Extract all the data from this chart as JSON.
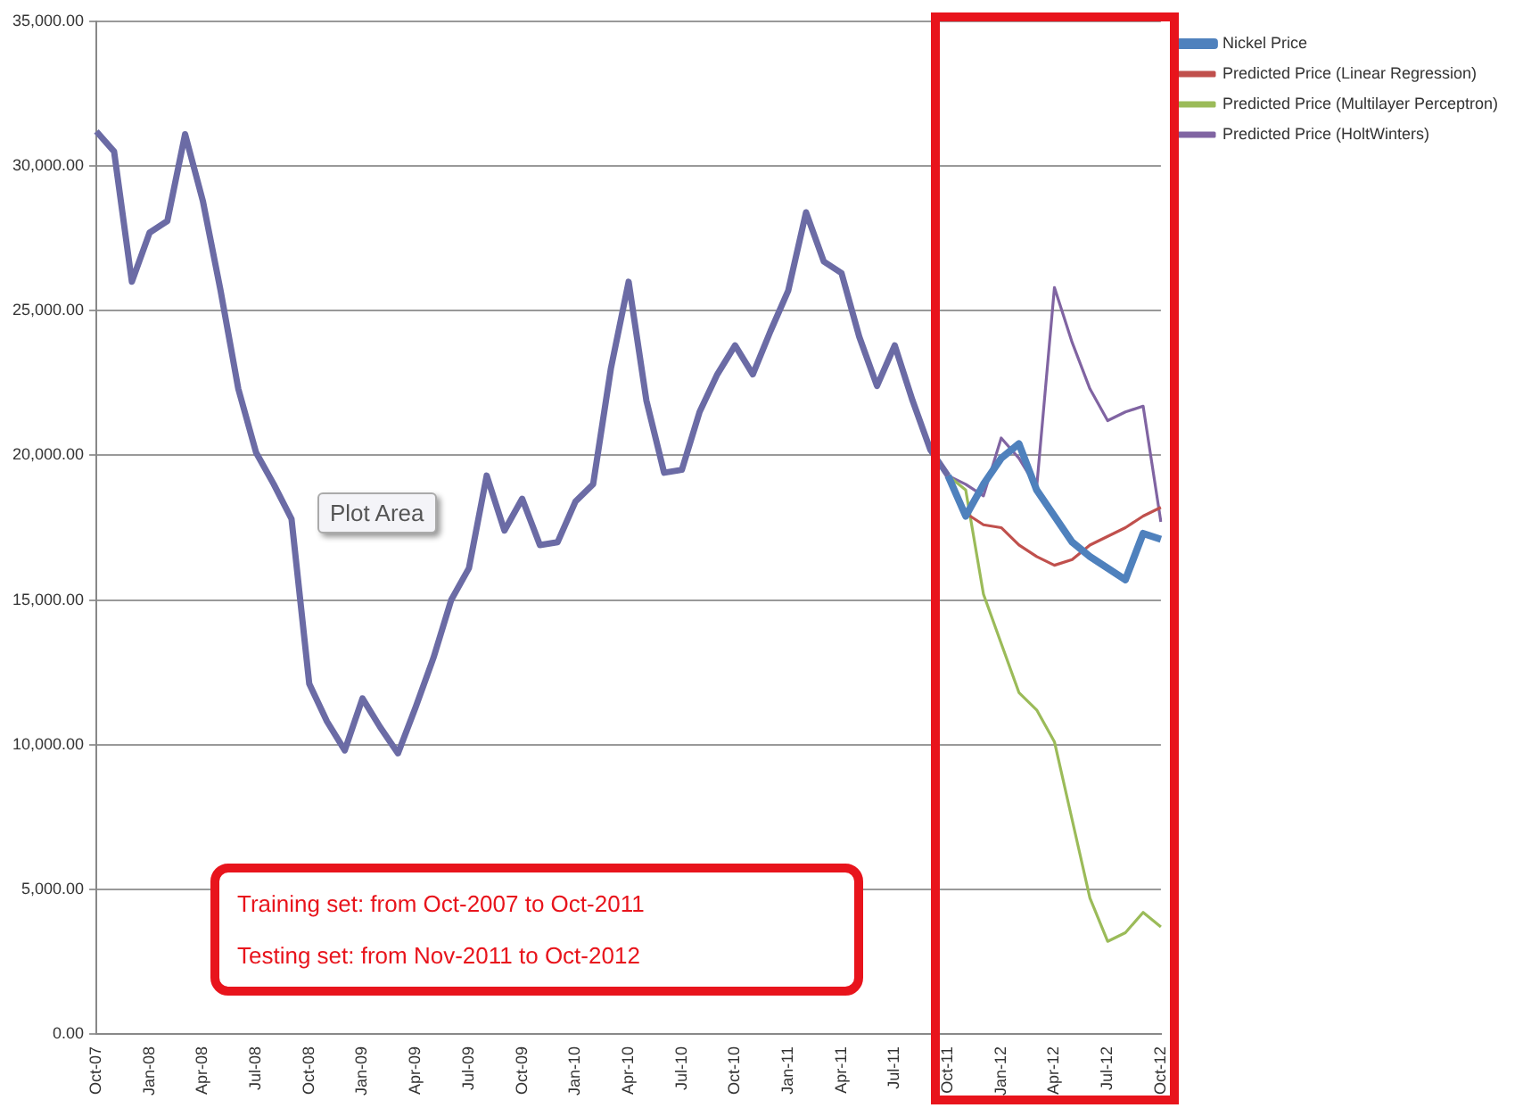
{
  "chart_data": {
    "type": "line",
    "categories": [
      "Oct-07",
      null,
      null,
      "Jan-08",
      null,
      null,
      "Apr-08",
      null,
      null,
      "Jul-08",
      null,
      null,
      "Oct-08",
      null,
      null,
      "Jan-09",
      null,
      null,
      "Apr-09",
      null,
      null,
      "Jul-09",
      null,
      null,
      "Oct-09",
      null,
      null,
      "Jan-10",
      null,
      null,
      "Apr-10",
      null,
      null,
      "Jul-10",
      null,
      null,
      "Oct-10",
      null,
      null,
      "Jan-11",
      null,
      null,
      "Apr-11",
      null,
      null,
      "Jul-11",
      null,
      null,
      "Oct-11",
      null,
      null,
      "Jan-12",
      null,
      null,
      "Apr-12",
      null,
      null,
      "Jul-12",
      null,
      null,
      "Oct-12"
    ],
    "series": [
      {
        "color": "#6b6ba5",
        "values": [
          31200,
          30500,
          26000,
          27700,
          28100,
          31100,
          28800,
          25700,
          22300,
          20100,
          19000,
          17800,
          12100,
          10800,
          9800,
          11600,
          10600,
          9700,
          11300,
          13000,
          15000,
          16100,
          19300,
          17400,
          18500,
          16900,
          17000,
          18400,
          19000,
          23000,
          26000,
          21900,
          19400,
          19500,
          21500,
          22800,
          23800,
          22800,
          24300,
          25700,
          28400,
          26700,
          26300,
          24100,
          22400,
          23800,
          21900,
          20200,
          19300,
          null,
          null,
          null,
          null,
          null,
          null,
          null,
          null,
          null,
          null,
          null,
          null
        ]
      },
      {
        "name": "Nickel Price",
        "color": "#4f81bd",
        "values": [
          null,
          null,
          null,
          null,
          null,
          null,
          null,
          null,
          null,
          null,
          null,
          null,
          null,
          null,
          null,
          null,
          null,
          null,
          null,
          null,
          null,
          null,
          null,
          null,
          null,
          null,
          null,
          null,
          null,
          null,
          null,
          null,
          null,
          null,
          null,
          null,
          null,
          null,
          null,
          null,
          null,
          null,
          null,
          null,
          null,
          null,
          null,
          null,
          19300,
          17900,
          19000,
          19900,
          20400,
          18800,
          17900,
          17000,
          16500,
          16100,
          15700,
          17300,
          17100
        ]
      },
      {
        "name": "Predicted Price (Linear Regression)",
        "color": "#c0504d",
        "values": [
          null,
          null,
          null,
          null,
          null,
          null,
          null,
          null,
          null,
          null,
          null,
          null,
          null,
          null,
          null,
          null,
          null,
          null,
          null,
          null,
          null,
          null,
          null,
          null,
          null,
          null,
          null,
          null,
          null,
          null,
          null,
          null,
          null,
          null,
          null,
          null,
          null,
          null,
          null,
          null,
          null,
          null,
          null,
          null,
          null,
          null,
          null,
          null,
          19300,
          18000,
          17600,
          17500,
          16900,
          16500,
          16200,
          16400,
          16900,
          17200,
          17500,
          17900,
          18200
        ]
      },
      {
        "name": "Predicted Price (Multilayer Perceptron)",
        "color": "#9bbb59",
        "values": [
          null,
          null,
          null,
          null,
          null,
          null,
          null,
          null,
          null,
          null,
          null,
          null,
          null,
          null,
          null,
          null,
          null,
          null,
          null,
          null,
          null,
          null,
          null,
          null,
          null,
          null,
          null,
          null,
          null,
          null,
          null,
          null,
          null,
          null,
          null,
          null,
          null,
          null,
          null,
          null,
          null,
          null,
          null,
          null,
          null,
          null,
          null,
          null,
          19300,
          18800,
          15200,
          13500,
          11800,
          11200,
          10100,
          7400,
          4700,
          3200,
          3500,
          4200,
          3700
        ]
      },
      {
        "name": "Predicted Price (HoltWinters)",
        "color": "#8064a2",
        "values": [
          null,
          null,
          null,
          null,
          null,
          null,
          null,
          null,
          null,
          null,
          null,
          null,
          null,
          null,
          null,
          null,
          null,
          null,
          null,
          null,
          null,
          null,
          null,
          null,
          null,
          null,
          null,
          null,
          null,
          null,
          null,
          null,
          null,
          null,
          null,
          null,
          null,
          null,
          null,
          null,
          null,
          null,
          null,
          null,
          null,
          null,
          null,
          null,
          19300,
          19000,
          18600,
          20600,
          19900,
          18900,
          25800,
          23900,
          22300,
          21200,
          21500,
          21700,
          17700
        ]
      }
    ],
    "ylim": [
      0,
      35000
    ],
    "yticks": [
      {
        "value": 0,
        "label": "0.00"
      },
      {
        "value": 5000,
        "label": "5,000.00"
      },
      {
        "value": 10000,
        "label": "10,000.00"
      },
      {
        "value": 15000,
        "label": "15,000.00"
      },
      {
        "value": 20000,
        "label": "20,000.00"
      },
      {
        "value": 25000,
        "label": "25,000.00"
      },
      {
        "value": 30000,
        "label": "30,000.00"
      },
      {
        "value": 35000,
        "label": "35,000.00"
      }
    ],
    "grid": "y",
    "legend": "top right",
    "annotations": [
      "Plot Area",
      "Training set: from Oct-2007 to Oct-2011",
      "Testing set: from Nov-2011 to Oct-2012"
    ]
  }
}
